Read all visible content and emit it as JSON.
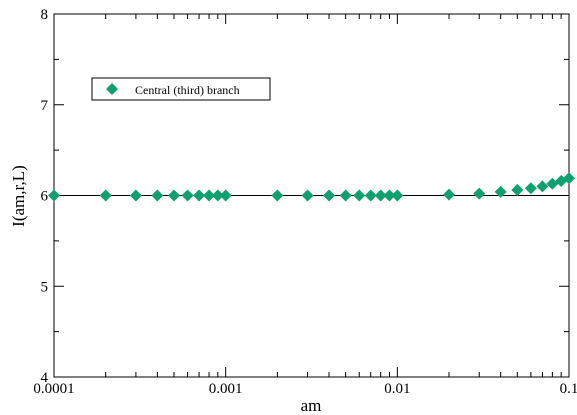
{
  "chart_data": {
    "type": "scatter",
    "xscale": "log",
    "xlim": [
      0.0001,
      0.1
    ],
    "ylim": [
      4,
      8
    ],
    "xlabel": "am",
    "ylabel": "I(am,r,L)",
    "grid": false,
    "legend_position": "top-left",
    "x_ticks": [
      {
        "value": 0.0001,
        "label": "0.0001"
      },
      {
        "value": 0.001,
        "label": "0.001"
      },
      {
        "value": 0.01,
        "label": "0.01"
      },
      {
        "value": 0.1,
        "label": "0.1"
      }
    ],
    "y_ticks": [
      {
        "value": 4,
        "label": "4"
      },
      {
        "value": 5,
        "label": "5"
      },
      {
        "value": 6,
        "label": "6"
      },
      {
        "value": 7,
        "label": "7"
      },
      {
        "value": 8,
        "label": "8"
      }
    ],
    "reference_line": {
      "y": 6,
      "color": "#000000"
    },
    "series": [
      {
        "name": "Central (third) branch",
        "color": "#10a070",
        "marker": "diamond",
        "x": [
          0.0001,
          0.0002,
          0.0003,
          0.0004,
          0.0005,
          0.0006,
          0.0007,
          0.0008,
          0.0009,
          0.001,
          0.002,
          0.003,
          0.004,
          0.005,
          0.006,
          0.007,
          0.008,
          0.009,
          0.01,
          0.02,
          0.03,
          0.04,
          0.05,
          0.06,
          0.07,
          0.08,
          0.09,
          0.1
        ],
        "y": [
          6.0,
          6.0,
          6.0,
          6.0,
          6.0,
          6.0,
          6.0,
          6.0,
          6.0,
          6.0,
          6.0,
          6.0,
          6.0,
          6.0,
          6.0,
          6.0,
          6.0,
          6.0,
          6.0,
          6.01,
          6.02,
          6.04,
          6.06,
          6.08,
          6.1,
          6.13,
          6.16,
          6.19
        ]
      }
    ]
  }
}
